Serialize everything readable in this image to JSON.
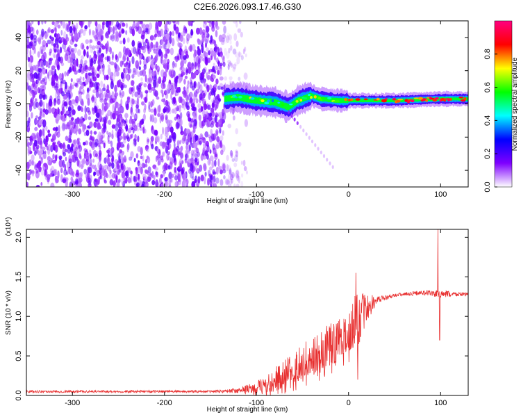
{
  "title": "C2E6.2026.093.17.46.G30",
  "chart_data": [
    {
      "type": "heatmap",
      "name": "spectrogram",
      "xlabel": "Height of straight line (km)",
      "ylabel": "Frequency (Hz)",
      "xlim": [
        -350,
        130
      ],
      "ylim": [
        -50,
        50
      ],
      "xticks": [
        -300,
        -200,
        -100,
        0,
        100
      ],
      "xtick_labels": [
        "-300",
        "-200",
        "-100",
        "0",
        "100"
      ],
      "yticks": [
        -40,
        -20,
        0,
        20,
        40
      ],
      "ytick_labels": [
        "-40",
        "-20",
        "0",
        "20",
        "40"
      ],
      "noise_region_x": [
        -350,
        -135
      ],
      "signal_start_x": -135,
      "signal_frequency_hz": [
        {
          "x": -135,
          "f": 3
        },
        {
          "x": -120,
          "f": 4
        },
        {
          "x": -100,
          "f": 2
        },
        {
          "x": -80,
          "f": 1
        },
        {
          "x": -65,
          "f": -2
        },
        {
          "x": -55,
          "f": 2
        },
        {
          "x": -40,
          "f": 5
        },
        {
          "x": -30,
          "f": 3
        },
        {
          "x": -10,
          "f": 2
        },
        {
          "x": 0,
          "f": 2
        },
        {
          "x": 50,
          "f": 2
        },
        {
          "x": 100,
          "f": 3
        },
        {
          "x": 130,
          "f": 3
        }
      ],
      "colorbar": {
        "label": "Normalized spectral amplitude",
        "range": [
          0,
          1
        ],
        "ticks": [
          0.0,
          0.2,
          0.4,
          0.6,
          0.8
        ],
        "tick_labels": [
          "0.0",
          "0.2",
          "0.4",
          "0.6",
          "0.8"
        ],
        "colors": [
          "#ffffff",
          "#7f00ff",
          "#0000ff",
          "#00ffff",
          "#00ff00",
          "#ffff00",
          "#ff0000",
          "#ff0080"
        ]
      }
    },
    {
      "type": "line",
      "name": "snr",
      "xlabel": "Height of straight line (km)",
      "ylabel": "SNR (10 * v/v)",
      "scale_label": "(x10⁴)",
      "xlim": [
        -350,
        130
      ],
      "ylim": [
        0,
        2.1
      ],
      "xticks": [
        -300,
        -200,
        -100,
        0,
        100
      ],
      "xtick_labels": [
        "-300",
        "-200",
        "-100",
        "0",
        "100"
      ],
      "yticks": [
        0.0,
        0.5,
        1.0,
        1.5,
        2.0
      ],
      "ytick_labels": [
        "0.0",
        "0.5",
        "1.0",
        "1.5",
        "2.0"
      ],
      "color": "#e83030",
      "envelope": {
        "x": [
          -350,
          -150,
          -120,
          -100,
          -80,
          -60,
          -40,
          -20,
          -5,
          10,
          30,
          50,
          80,
          100,
          130
        ],
        "mean": [
          0.05,
          0.05,
          0.06,
          0.1,
          0.2,
          0.35,
          0.5,
          0.65,
          0.75,
          1.0,
          1.2,
          1.27,
          1.3,
          1.28,
          1.28
        ],
        "noise": [
          0.015,
          0.015,
          0.03,
          0.08,
          0.15,
          0.2,
          0.25,
          0.28,
          0.25,
          0.35,
          0.05,
          0.02,
          0.03,
          0.05,
          0.02
        ]
      },
      "spikes": [
        {
          "x": 8,
          "y": 1.55
        },
        {
          "x": 10,
          "y": 0.2
        },
        {
          "x": 97,
          "y": 2.1
        },
        {
          "x": 99,
          "y": 0.7
        }
      ]
    }
  ]
}
